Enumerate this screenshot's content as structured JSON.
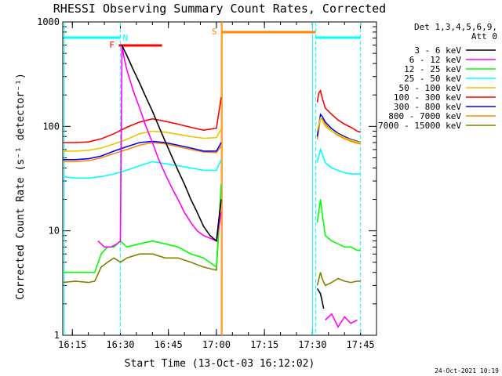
{
  "chart_data": {
    "type": "line",
    "title": "RHESSI Observing Summary Count Rates, Corrected",
    "xlabel": "Start Time (13-Oct-03 16:12:02)",
    "ylabel": "Corrected Count Rate (s⁻¹ detector⁻¹)",
    "x_unit": "minutes after 16:12:02",
    "xlim": [
      0,
      98
    ],
    "ylim": [
      1,
      1000
    ],
    "yscale": "log",
    "x_ticks": [
      {
        "label": "16:15",
        "x": 3
      },
      {
        "label": "16:30",
        "x": 18
      },
      {
        "label": "16:45",
        "x": 33
      },
      {
        "label": "17:00",
        "x": 48
      },
      {
        "label": "17:15",
        "x": 63
      },
      {
        "label": "17:30",
        "x": 78
      },
      {
        "label": "17:45",
        "x": 93
      }
    ],
    "y_ticks": [
      {
        "label": "1",
        "y": 1
      },
      {
        "label": "10",
        "y": 10
      },
      {
        "label": "100",
        "y": 100
      },
      {
        "label": "1000",
        "y": 1000
      }
    ],
    "legend": {
      "placement": "right",
      "header": [
        "Det 1,3,4,5,6,9,",
        "Att 0"
      ]
    },
    "footer_timestamp": "24-Oct-2021 10:19",
    "series": [
      {
        "name": "3 - 6 keV",
        "color": "#000000",
        "x": [
          18.5,
          19,
          20,
          22,
          24,
          26,
          28,
          30,
          32,
          34,
          36,
          38,
          40,
          42,
          44,
          46,
          48,
          49.5
        ],
        "y": [
          600,
          550,
          480,
          350,
          260,
          190,
          140,
          100,
          72,
          52,
          38,
          28,
          20,
          15,
          11,
          9,
          8,
          20
        ],
        "x2": [
          79.5,
          80.5,
          81.5
        ],
        "y2": [
          2.8,
          2.5,
          1.8
        ]
      },
      {
        "name": "6 - 12 keV",
        "color": "#ff00ff",
        "x": [
          11,
          13,
          15,
          17,
          18,
          18.5,
          19,
          20,
          22,
          24,
          26,
          28,
          30,
          32,
          34,
          36,
          38,
          40,
          42,
          44,
          46,
          48,
          49.5
        ],
        "y": [
          8,
          7,
          7,
          7.5,
          8,
          600,
          480,
          350,
          220,
          150,
          100,
          70,
          48,
          35,
          26,
          20,
          15,
          12,
          10,
          9,
          8.5,
          8,
          15
        ],
        "x2": [
          82,
          84,
          86,
          88,
          90,
          92
        ],
        "y2": [
          1.4,
          1.6,
          1.2,
          1.5,
          1.3,
          1.4
        ]
      },
      {
        "name": "12 - 25 keV",
        "color": "#00ff00",
        "x": [
          0,
          5,
          10,
          12,
          14,
          16,
          18,
          20,
          24,
          28,
          32,
          36,
          40,
          44,
          48,
          49.5
        ],
        "y": [
          4,
          4,
          4,
          6,
          7,
          7,
          8,
          7,
          7.5,
          8,
          7.5,
          7,
          6,
          5.5,
          4.5,
          28
        ],
        "x2": [
          79.5,
          80.5,
          81,
          82,
          84,
          86,
          88,
          90,
          92,
          93
        ],
        "y2": [
          12,
          20,
          15,
          9,
          8,
          7.5,
          7,
          7,
          6.5,
          6.5
        ]
      },
      {
        "name": "25 - 50 keV",
        "color": "#00ffff",
        "x": [
          0,
          4,
          8,
          12,
          16,
          20,
          24,
          28,
          32,
          36,
          40,
          44,
          48,
          49.5
        ],
        "y": [
          33,
          32,
          32,
          33,
          35,
          38,
          42,
          46,
          44,
          42,
          40,
          38,
          38,
          48
        ],
        "x2": [
          79.5,
          80.5,
          81,
          82,
          84,
          86,
          88,
          90,
          92,
          93
        ],
        "y2": [
          45,
          60,
          55,
          45,
          40,
          38,
          36,
          35,
          35,
          35
        ]
      },
      {
        "name": "50 - 100 keV",
        "color": "#e6c800",
        "x": [
          0,
          4,
          8,
          12,
          16,
          20,
          24,
          28,
          32,
          36,
          40,
          44,
          48,
          49.5
        ],
        "y": [
          58,
          58,
          59,
          62,
          68,
          75,
          85,
          90,
          88,
          84,
          80,
          77,
          78,
          95
        ],
        "x2": [
          79.5,
          80.5,
          81,
          82,
          84,
          86,
          88,
          90,
          92,
          93
        ],
        "y2": [
          90,
          120,
          115,
          100,
          90,
          84,
          78,
          74,
          71,
          70
        ]
      },
      {
        "name": "100 - 300 keV",
        "color": "#ff0000",
        "x": [
          0,
          4,
          8,
          12,
          16,
          20,
          24,
          28,
          32,
          36,
          40,
          44,
          48,
          49.5
        ],
        "y": [
          70,
          70,
          71,
          76,
          85,
          98,
          110,
          118,
          112,
          105,
          98,
          92,
          96,
          190
        ],
        "x2": [
          79.5,
          80,
          80.5,
          81,
          82,
          84,
          86,
          88,
          90,
          92,
          93
        ],
        "y2": [
          170,
          210,
          220,
          190,
          150,
          130,
          115,
          105,
          98,
          90,
          88
        ]
      },
      {
        "name": "300 - 800 keV",
        "color": "#0000ff",
        "x": [
          0,
          4,
          8,
          12,
          16,
          20,
          24,
          28,
          32,
          36,
          40,
          44,
          48,
          49.5
        ],
        "y": [
          48,
          48,
          49,
          52,
          58,
          64,
          70,
          72,
          70,
          66,
          62,
          58,
          58,
          70
        ],
        "x2": [
          79.5,
          80.5,
          81,
          82,
          84,
          86,
          88,
          90,
          92,
          93
        ],
        "y2": [
          80,
          130,
          125,
          110,
          95,
          86,
          80,
          75,
          72,
          70
        ]
      },
      {
        "name": "800 - 7000 keV",
        "color": "#ff8800",
        "x": [
          0,
          4,
          8,
          12,
          16,
          20,
          24,
          28,
          32,
          36,
          40,
          44,
          48,
          49.5
        ],
        "y": [
          46,
          46,
          47,
          50,
          55,
          60,
          66,
          70,
          68,
          64,
          60,
          57,
          56,
          65
        ],
        "x2": [
          79.5,
          80.5,
          81,
          82,
          84,
          86,
          88,
          90,
          92,
          93
        ],
        "y2": [
          75,
          120,
          118,
          105,
          90,
          82,
          76,
          72,
          69,
          68
        ]
      },
      {
        "name": "7000 - 15000 keV",
        "color": "#808000",
        "x": [
          0,
          4,
          8,
          10,
          12,
          14,
          16,
          18,
          20,
          24,
          28,
          32,
          36,
          40,
          44,
          48,
          49.5
        ],
        "y": [
          3.2,
          3.3,
          3.2,
          3.3,
          4.5,
          5,
          5.5,
          5,
          5.5,
          6,
          6,
          5.5,
          5.5,
          5,
          4.5,
          4.2,
          25
        ],
        "x2": [
          79.5,
          80.5,
          81,
          82,
          84,
          86,
          88,
          90,
          92,
          93
        ],
        "y2": [
          3,
          4,
          3.5,
          3,
          3.2,
          3.5,
          3.3,
          3.2,
          3.3,
          3.3
        ]
      }
    ],
    "annotations": {
      "night_markers": [
        {
          "label": "N",
          "x_start": 18,
          "x_end": 78
        }
      ],
      "night_bars": [
        {
          "x0": 0.5,
          "x1": 18
        },
        {
          "x0": 79,
          "x1": 93
        }
      ],
      "saa_markers": [
        {
          "label": "S",
          "x_start": 49.5,
          "x_end": 79
        }
      ],
      "flare_markers": [
        {
          "label": "F",
          "x_start": 17.5,
          "x_end": 31
        }
      ],
      "cyan_vertical_lines": [
        0.5,
        18,
        78,
        79,
        93
      ],
      "cyan_dashed_lines": [
        18,
        79,
        93
      ],
      "orange_vertical_lines": [
        49.5,
        49.8
      ]
    },
    "colors": {
      "night": "#00ffff",
      "saa": "#ff8800",
      "flare": "#ff0000",
      "axis": "#000000"
    }
  }
}
